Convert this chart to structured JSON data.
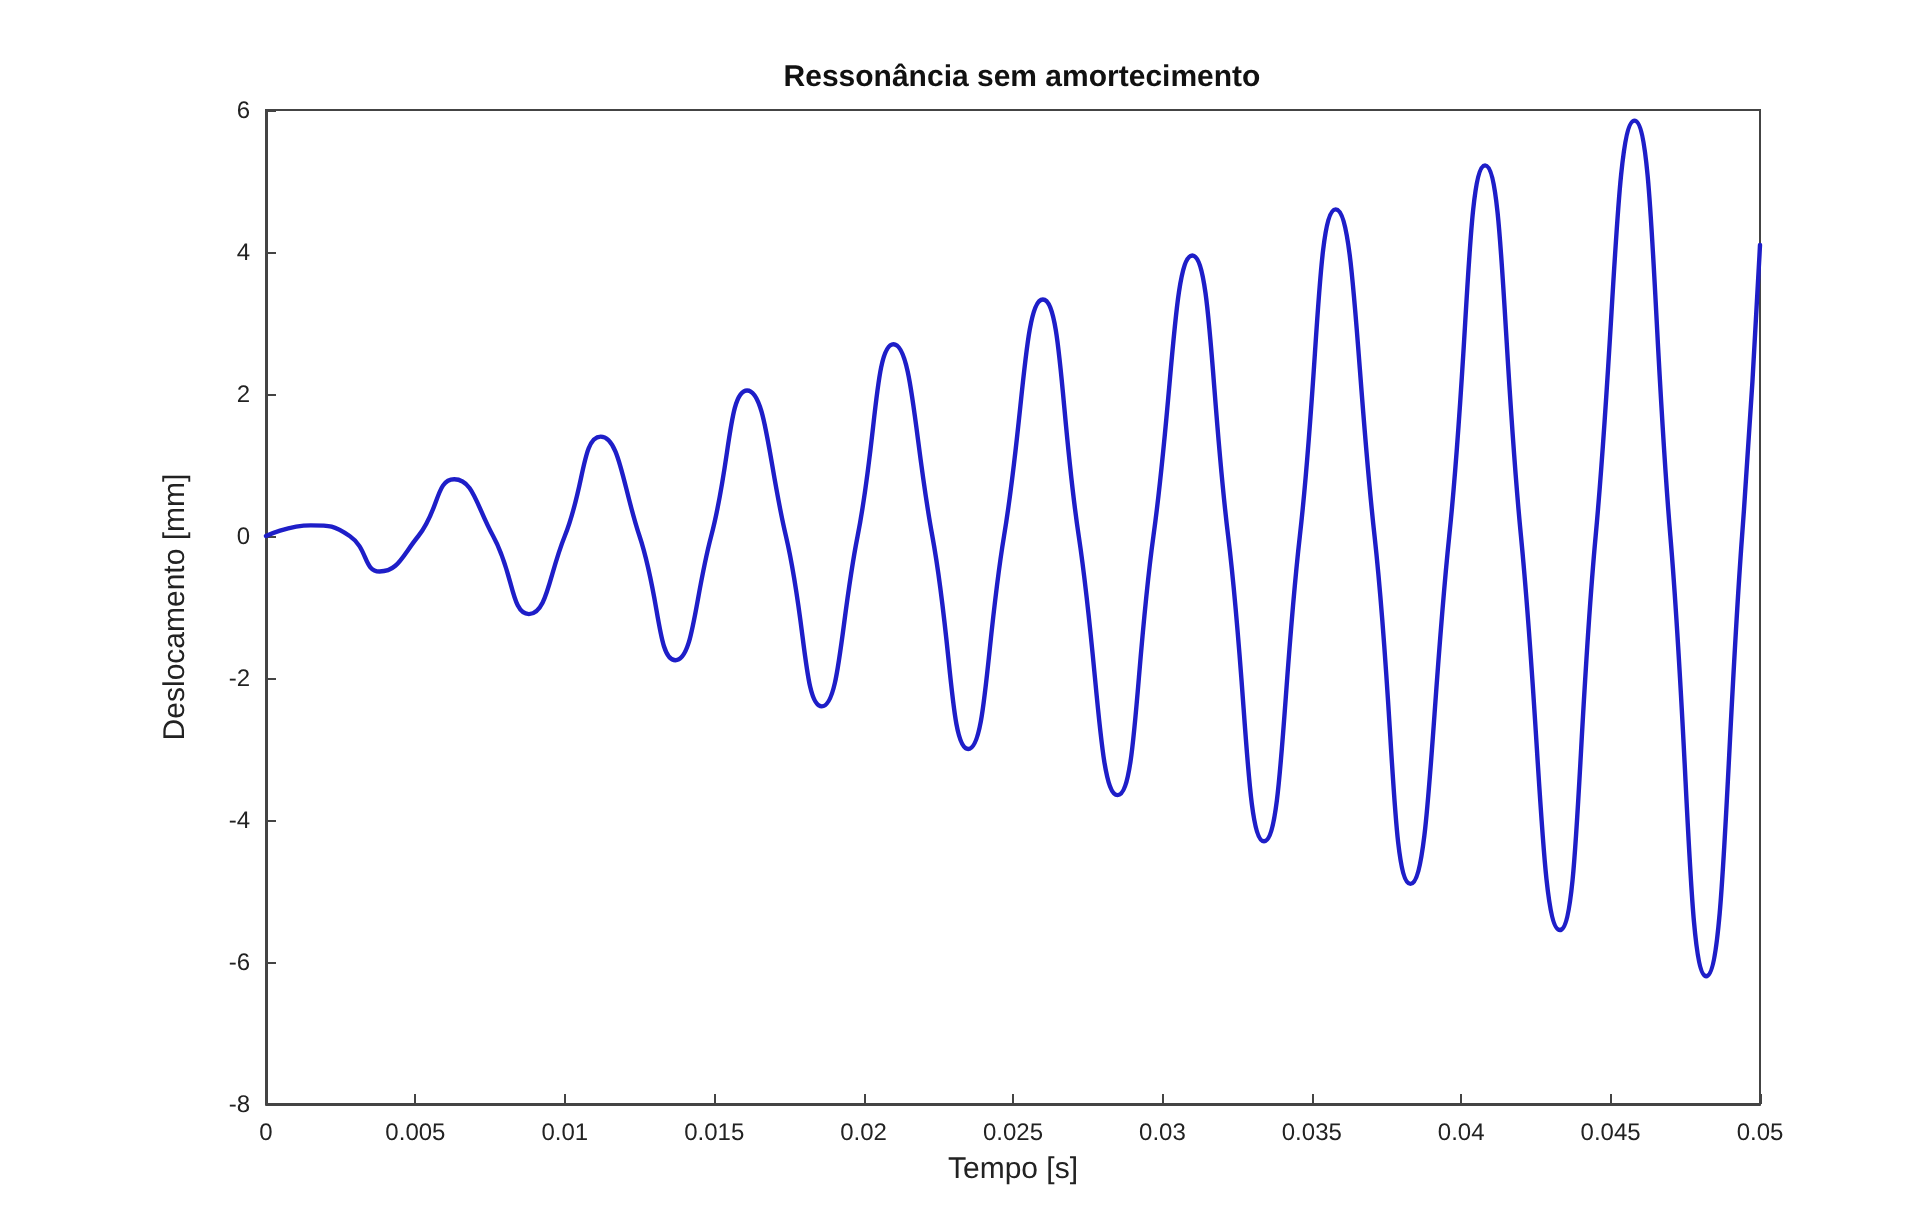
{
  "chart_data": {
    "type": "line",
    "title": "Ressonância sem amortecimento",
    "xlabel": "Tempo [s]",
    "ylabel": "Deslocamento [mm]",
    "x": [
      0,
      0.0015,
      0.0028,
      0.0038,
      0.0051,
      0.0063,
      0.0076,
      0.0088,
      0.01,
      0.0112,
      0.0125,
      0.0137,
      0.0149,
      0.0161,
      0.0174,
      0.0186,
      0.0198,
      0.021,
      0.0223,
      0.0235,
      0.0247,
      0.026,
      0.0272,
      0.0285,
      0.0297,
      0.031,
      0.0322,
      0.0334,
      0.0346,
      0.0358,
      0.0371,
      0.0383,
      0.0396,
      0.0408,
      0.042,
      0.0433,
      0.0445,
      0.0458,
      0.047,
      0.0482,
      0.0494,
      0.05
    ],
    "series": [
      {
        "color": "#1e1ec8",
        "values": [
          0,
          0.15,
          0,
          -0.5,
          0,
          0.8,
          0,
          -1.1,
          0,
          1.4,
          0,
          -1.75,
          0,
          2.05,
          0,
          -2.4,
          0,
          2.7,
          0,
          -3.0,
          0,
          3.33,
          0,
          -3.65,
          0,
          3.95,
          0,
          -4.3,
          0,
          4.6,
          0,
          -4.9,
          0,
          5.22,
          0,
          -5.55,
          0,
          5.85,
          0,
          -6.2,
          0,
          4.1
        ]
      }
    ],
    "xlim": [
      0,
      0.05
    ],
    "xticks": [
      0,
      0.005,
      0.01,
      0.015,
      0.02,
      0.025,
      0.03,
      0.035,
      0.04,
      0.045,
      0.05
    ],
    "ylim": [
      -8,
      6
    ],
    "yticks": [
      -8,
      -6,
      -4,
      -2,
      0,
      2,
      4,
      6
    ],
    "grid": false,
    "marker": "none",
    "line_style": "solid"
  }
}
